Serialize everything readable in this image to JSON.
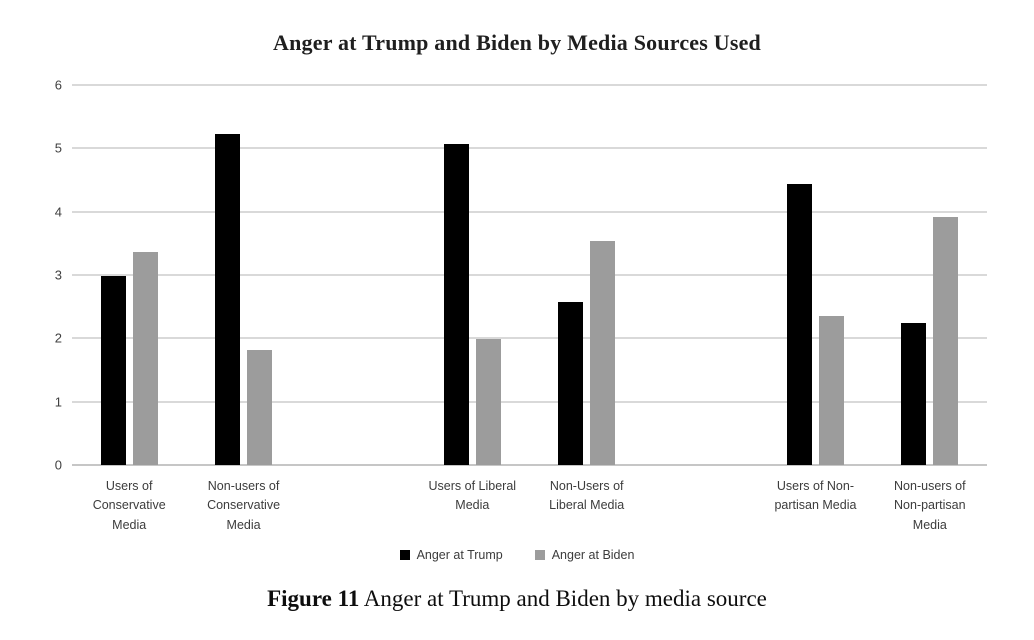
{
  "figure": {
    "caption_label": "Figure 11",
    "caption_text": " Anger at Trump and Biden by media source"
  },
  "chart_data": {
    "type": "bar",
    "title": "Anger at Trump and Biden by Media Sources Used",
    "categories": [
      "Users of\nConservative\nMedia",
      "Non-users of\nConservative\nMedia",
      "Users of Liberal\nMedia",
      "Non-Users of\nLiberal Media",
      "Users of Non-\npartisan Media",
      "Non-users of\nNon-partisan\nMedia"
    ],
    "series": [
      {
        "name": "Anger at Trump",
        "color": "#000000",
        "values": [
          2.98,
          5.22,
          5.07,
          2.57,
          4.44,
          2.24
        ]
      },
      {
        "name": "Anger at Biden",
        "color": "#9c9c9c",
        "values": [
          3.36,
          1.81,
          1.99,
          3.53,
          2.36,
          3.91
        ]
      }
    ],
    "xlabel": "",
    "ylabel": "",
    "ylim": [
      0,
      6
    ],
    "yticks": [
      0,
      1,
      2,
      3,
      4,
      5,
      6
    ],
    "grid": true,
    "legend_position": "bottom",
    "layout_note": "three clusters of two categories separated by empty slots"
  }
}
